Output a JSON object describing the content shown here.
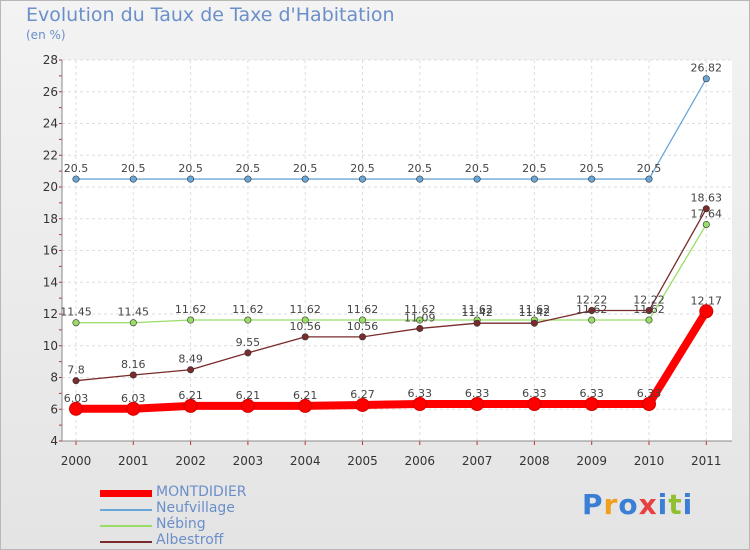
{
  "chart_data": {
    "type": "line",
    "title": "Evolution du Taux de Taxe d'Habitation",
    "ylabel": "(en %)",
    "xlabel": "",
    "ylim": [
      4,
      28
    ],
    "yticks": [
      4,
      6,
      8,
      10,
      12,
      14,
      16,
      18,
      20,
      22,
      24,
      26,
      28
    ],
    "categories": [
      "2000",
      "2001",
      "2002",
      "2003",
      "2004",
      "2005",
      "2006",
      "2007",
      "2008",
      "2009",
      "2010",
      "2011"
    ],
    "series": [
      {
        "name": "MONTDIDIER",
        "color": "#ff0000",
        "labels": [
          "6.03",
          "6.03",
          "6.21",
          "6.21",
          "6.21",
          "6.27",
          "6.33",
          "6.33",
          "6.33",
          "6.33",
          "6.33",
          "12.17"
        ],
        "values": [
          6.03,
          6.03,
          6.21,
          6.21,
          6.21,
          6.27,
          6.33,
          6.33,
          6.33,
          6.33,
          6.33,
          12.17
        ]
      },
      {
        "name": "Neufvillage",
        "color": "#6aa7d9",
        "labels": [
          "20.5",
          "20.5",
          "20.5",
          "20.5",
          "20.5",
          "20.5",
          "20.5",
          "20.5",
          "20.5",
          "20.5",
          "20.5",
          "26.82"
        ],
        "values": [
          20.5,
          20.5,
          20.5,
          20.5,
          20.5,
          20.5,
          20.5,
          20.5,
          20.5,
          20.5,
          20.5,
          26.82
        ]
      },
      {
        "name": "Nébing",
        "color": "#99dd66",
        "labels": [
          "11.45",
          "11.45",
          "11.62",
          "11.62",
          "11.62",
          "11.62",
          "11.62",
          "11.62",
          "11.62",
          "11.62",
          "11.62",
          "17.64"
        ],
        "values": [
          11.45,
          11.45,
          11.62,
          11.62,
          11.62,
          11.62,
          11.62,
          11.62,
          11.62,
          11.62,
          11.62,
          17.64
        ]
      },
      {
        "name": "Albestroff",
        "color": "#7a2b2b",
        "labels": [
          "7.8",
          "8.16",
          "8.49",
          "9.55",
          "10.56",
          "10.56",
          "11.09",
          "11.42",
          "11.42",
          "12.22",
          "12.22",
          "18.63"
        ],
        "values": [
          7.8,
          8.16,
          8.49,
          9.55,
          10.56,
          10.56,
          11.09,
          11.42,
          11.42,
          12.22,
          12.22,
          18.63
        ]
      }
    ]
  },
  "logo": {
    "text": "Proxiti",
    "letters": [
      "P",
      "r",
      "o",
      "x",
      "i",
      "t",
      "i"
    ],
    "colors": [
      "#3a7fd5",
      "#f0a020",
      "#3a7fd5",
      "#e84040",
      "#3a7fd5",
      "#90c030",
      "#3a7fd5"
    ]
  }
}
